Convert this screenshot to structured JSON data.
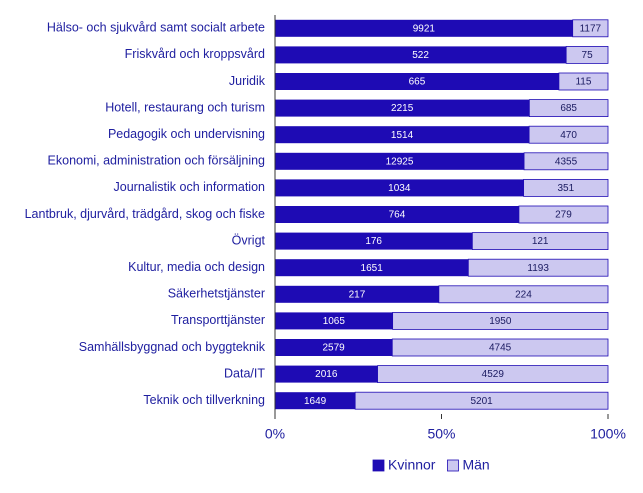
{
  "chart_data": {
    "type": "bar100h",
    "categories": [
      "Hälso- och sjukvård samt socialt arbete",
      "Friskvård och kroppsvård",
      "Juridik",
      "Hotell, restaurang och turism",
      "Pedagogik och undervisning",
      "Ekonomi, administration och försäljning",
      "Journalistik och information",
      "Lantbruk, djurvård, trädgård, skog och fiske",
      "Övrigt",
      "Kultur, media och design",
      "Säkerhetstjänster",
      "Transporttjänster",
      "Samhällsbyggnad och byggteknik",
      "Data/IT",
      "Teknik och tillverkning"
    ],
    "series": [
      {
        "name": "Kvinnor",
        "color": "#1e0bb4",
        "values": [
          9921,
          522,
          665,
          2215,
          1514,
          12925,
          1034,
          764,
          176,
          1651,
          217,
          1065,
          2579,
          2016,
          1649
        ]
      },
      {
        "name": "Män",
        "color": "#ccc8f0",
        "values": [
          1177,
          75,
          115,
          685,
          470,
          4355,
          351,
          279,
          121,
          1193,
          224,
          1950,
          4745,
          4529,
          5201
        ]
      }
    ],
    "xlim": [
      0,
      100
    ],
    "xticks": [
      {
        "value": 0,
        "label": "0%"
      },
      {
        "value": 50,
        "label": "50%"
      },
      {
        "value": 100,
        "label": "100%"
      }
    ]
  }
}
